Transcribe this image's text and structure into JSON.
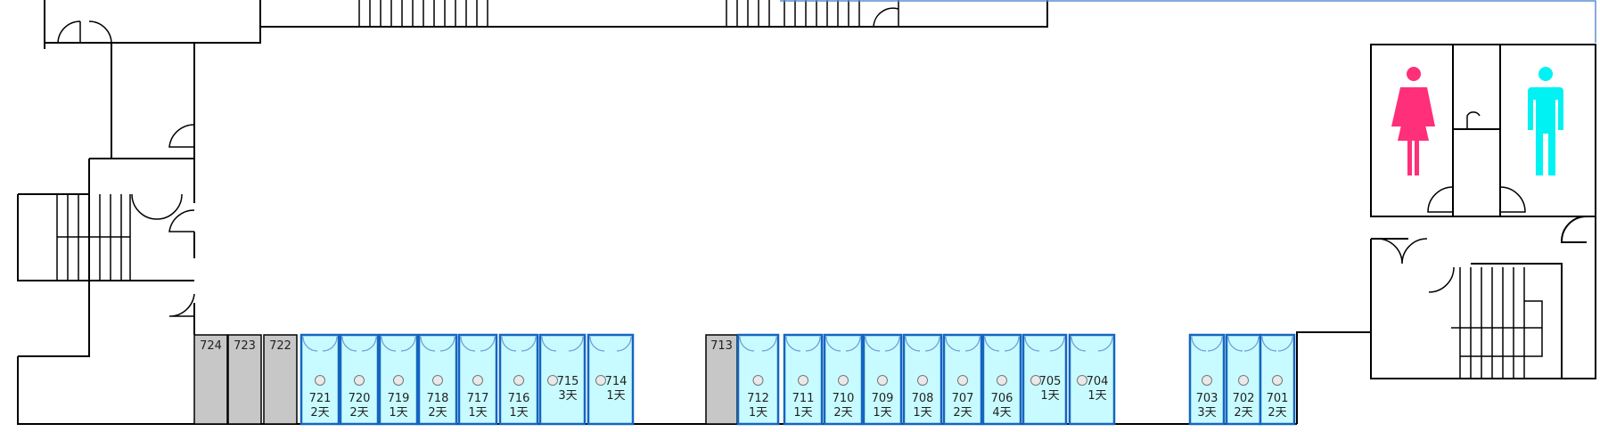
{
  "floor": {
    "rooms": [
      {
        "number": "724",
        "days": "",
        "status": "occupied"
      },
      {
        "number": "723",
        "days": "",
        "status": "occupied"
      },
      {
        "number": "722",
        "days": "",
        "status": "occupied"
      },
      {
        "number": "721",
        "days": "2天",
        "status": "available"
      },
      {
        "number": "720",
        "days": "2天",
        "status": "available"
      },
      {
        "number": "719",
        "days": "1天",
        "status": "available"
      },
      {
        "number": "718",
        "days": "2天",
        "status": "available"
      },
      {
        "number": "717",
        "days": "1天",
        "status": "available"
      },
      {
        "number": "716",
        "days": "1天",
        "status": "available"
      },
      {
        "number": "715",
        "days": "3天",
        "status": "available"
      },
      {
        "number": "714",
        "days": "1天",
        "status": "available"
      },
      {
        "number": "713",
        "days": "",
        "status": "occupied"
      },
      {
        "number": "712",
        "days": "1天",
        "status": "available"
      },
      {
        "number": "711",
        "days": "1天",
        "status": "available"
      },
      {
        "number": "710",
        "days": "2天",
        "status": "available"
      },
      {
        "number": "709",
        "days": "1天",
        "status": "available"
      },
      {
        "number": "708",
        "days": "1天",
        "status": "available"
      },
      {
        "number": "707",
        "days": "2天",
        "status": "available"
      },
      {
        "number": "706",
        "days": "4天",
        "status": "available"
      },
      {
        "number": "705",
        "days": "1天",
        "status": "available"
      },
      {
        "number": "704",
        "days": "1天",
        "status": "available"
      },
      {
        "number": "703",
        "days": "3天",
        "status": "available"
      },
      {
        "number": "702",
        "days": "2天",
        "status": "available"
      },
      {
        "number": "701",
        "days": "2天",
        "status": "available"
      }
    ],
    "colors": {
      "available_fill": "#c8fbff",
      "available_border": "#1565c0",
      "occupied_fill": "#c7c7c7",
      "female_icon": "#ff2f7a",
      "male_icon": "#00f2f2"
    },
    "icons": {
      "female_restroom": "female-person-icon",
      "male_restroom": "male-person-icon"
    }
  }
}
